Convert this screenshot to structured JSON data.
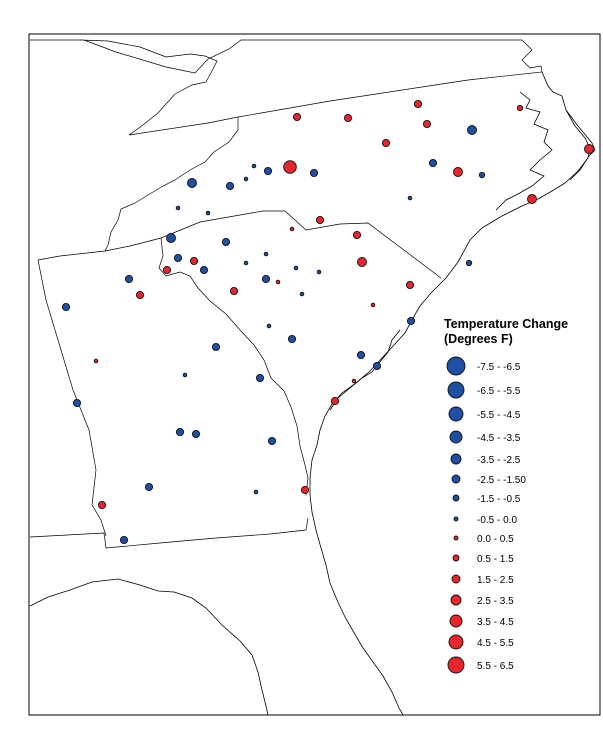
{
  "legend": {
    "title_line1": "Temperature Change",
    "title_line2": "(Degrees F)",
    "classes": [
      {
        "label": "-7.5 - -6.5",
        "color": "#1f4fa3",
        "size": 9
      },
      {
        "label": "-6.5 - -5.5",
        "color": "#1f4fa3",
        "size": 8
      },
      {
        "label": "-5.5 - -4.5",
        "color": "#1f4fa3",
        "size": 7
      },
      {
        "label": "-4.5 - -3.5",
        "color": "#1f4fa3",
        "size": 6
      },
      {
        "label": "-3.5 - -2.5",
        "color": "#1f4fa3",
        "size": 5
      },
      {
        "label": "-2.5 - -1.50",
        "color": "#1f4fa3",
        "size": 4
      },
      {
        "label": "-1.5 - -0.5",
        "color": "#1f4fa3",
        "size": 3
      },
      {
        "label": "-0.5 - 0.0",
        "color": "#1f4fa3",
        "size": 2
      },
      {
        "label": "0.0 - 0.5",
        "color": "#e8262b",
        "size": 2
      },
      {
        "label": "0.5 - 1.5",
        "color": "#e8262b",
        "size": 3
      },
      {
        "label": "1.5 - 2.5",
        "color": "#e8262b",
        "size": 4
      },
      {
        "label": "2.5 - 3.5",
        "color": "#e8262b",
        "size": 5
      },
      {
        "label": "3.5 - 4.5",
        "color": "#e8262b",
        "size": 6
      },
      {
        "label": "4.5 - 5.5",
        "color": "#e8262b",
        "size": 7
      },
      {
        "label": "5.5 - 6.5",
        "color": "#e8262b",
        "size": 8
      }
    ]
  },
  "colors": {
    "cooling": "#1f4fa3",
    "warming": "#e8262b",
    "outline": "#000000"
  }
}
